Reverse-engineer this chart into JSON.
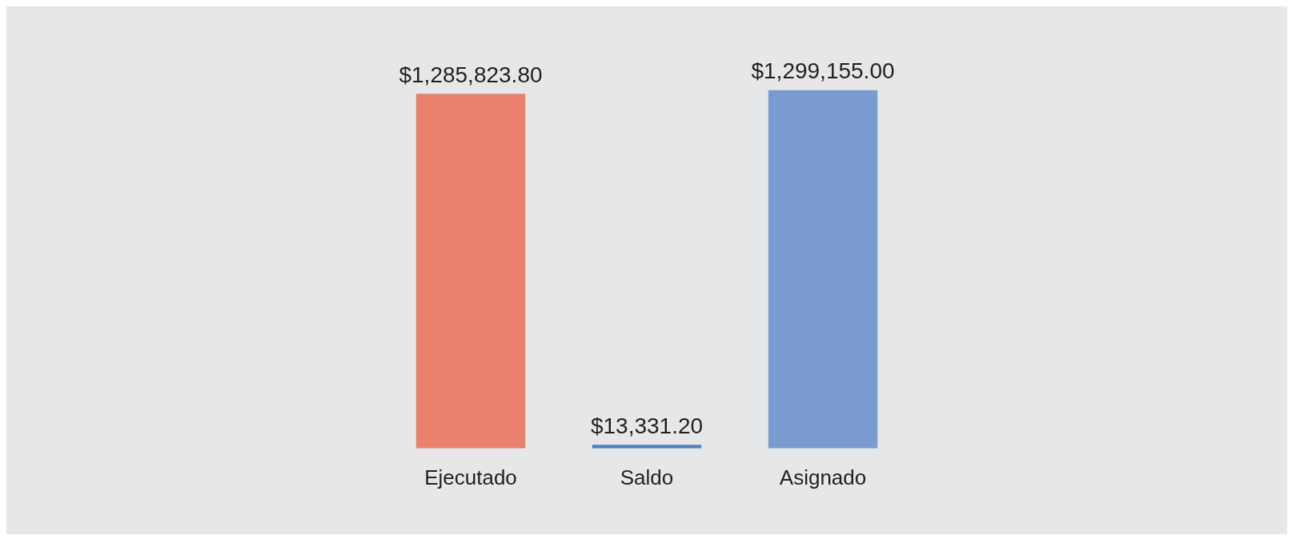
{
  "chart_data": {
    "type": "bar",
    "categories": [
      "Ejecutado",
      "Saldo",
      "Asignado"
    ],
    "values": [
      1285823.8,
      13331.2,
      1299155.0
    ],
    "colors": [
      "#e8826e",
      "#4f81bd",
      "#7a9bcf"
    ],
    "value_labels": [
      "$1,285,823.80",
      "$13,331.20",
      "$1,299,155.00"
    ],
    "tick_labels": "x"
  }
}
